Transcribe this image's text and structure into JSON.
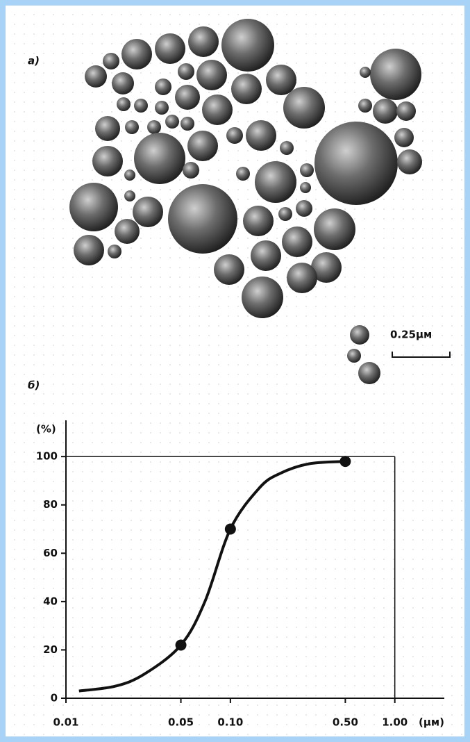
{
  "figure": {
    "panel_a_label": "a)",
    "scale_label": "0.25μм",
    "panel_b_label": "б)"
  },
  "chart_data": {
    "type": "line",
    "log_x": true,
    "y_label": "(%)",
    "x_label": "(μм)",
    "xlim": [
      0.01,
      2.0
    ],
    "ylim": [
      0,
      115
    ],
    "xticks": [
      0.01,
      0.05,
      {
        "value": 0.1,
        "label": "0.10"
      },
      {
        "value": 0.5,
        "label": "0.50"
      },
      {
        "value": 1.0,
        "label": "1.00"
      }
    ],
    "yticks": [
      0,
      20,
      40,
      60,
      80,
      100
    ],
    "ref_y": 100,
    "ref_x": 1.0,
    "series": [
      {
        "color": "#111111",
        "x": [
          0.012,
          0.02,
          0.03,
          0.05,
          0.07,
          0.1,
          0.15,
          0.2,
          0.3,
          0.5
        ],
        "values": [
          3,
          5,
          10,
          22,
          40,
          70,
          87,
          93,
          97,
          98
        ]
      },
      {
        "color": "#111111",
        "marker": true,
        "x": [
          0.05,
          0.1,
          0.5
        ],
        "values": [
          22,
          70,
          98
        ]
      }
    ]
  }
}
